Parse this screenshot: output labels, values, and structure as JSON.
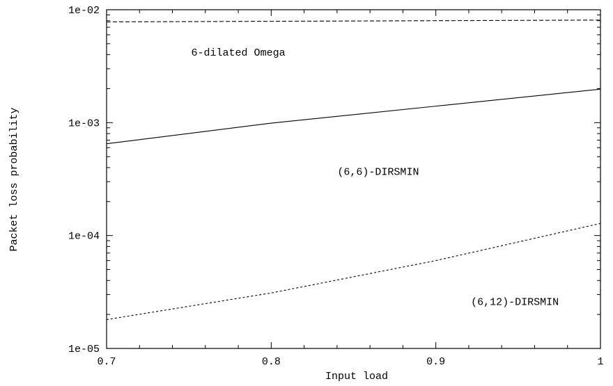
{
  "chart_data": {
    "type": "line",
    "title": "",
    "xlabel": "Input load",
    "ylabel": "Packet loss probability",
    "xlim": [
      0.7,
      1.0
    ],
    "ylim": [
      1e-05,
      0.01
    ],
    "yscale": "log",
    "grid": false,
    "x_ticks": [
      0.7,
      0.8,
      0.9,
      1.0
    ],
    "x_tick_labels": [
      "0.7",
      "0.8",
      "0.9",
      "1"
    ],
    "y_ticks": [
      1e-05,
      0.0001,
      0.001,
      0.01
    ],
    "y_tick_labels": [
      "1e-05",
      "1e-04",
      "1e-03",
      "1e-02"
    ],
    "series": [
      {
        "label_text": "6-dilated Omega",
        "line_style": "dashed",
        "color": "#000000",
        "x": [
          0.7,
          0.8,
          0.9,
          1.0
        ],
        "values": [
          0.0078,
          0.0079,
          0.008,
          0.0081
        ]
      },
      {
        "label_text": "(6,6)-DIRSMIN",
        "line_style": "solid",
        "color": "#000000",
        "x": [
          0.7,
          0.8,
          0.9,
          1.0
        ],
        "values": [
          0.00065,
          0.00099,
          0.0014,
          0.00198
        ]
      },
      {
        "label_text": "(6,12)-DIRSMIN",
        "line_style": "dotted",
        "color": "#000000",
        "x": [
          0.7,
          0.8,
          0.9,
          1.0
        ],
        "values": [
          1.8e-05,
          3.1e-05,
          6e-05,
          0.000128
        ]
      }
    ],
    "annotations": [
      {
        "text": "6-dilated Omega",
        "x": 0.78,
        "y": 0.0042
      },
      {
        "text": "(6,6)-DIRSMIN",
        "x": 0.865,
        "y": 0.00037
      },
      {
        "text": "(6,12)-DIRSMIN",
        "x": 0.948,
        "y": 2.6e-05
      }
    ]
  }
}
